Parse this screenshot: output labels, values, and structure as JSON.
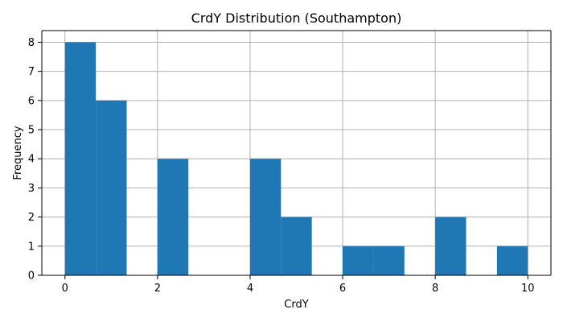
{
  "chart_data": {
    "type": "bar",
    "title": "CrdY Distribution (Southampton)",
    "xlabel": "CrdY",
    "ylabel": "Frequency",
    "bins": [
      {
        "start": 0.0,
        "end": 0.6667,
        "count": 8
      },
      {
        "start": 0.6667,
        "end": 1.3333,
        "count": 6
      },
      {
        "start": 1.3333,
        "end": 2.0,
        "count": 0
      },
      {
        "start": 2.0,
        "end": 2.6667,
        "count": 4
      },
      {
        "start": 2.6667,
        "end": 3.3333,
        "count": 0
      },
      {
        "start": 3.3333,
        "end": 4.0,
        "count": 0
      },
      {
        "start": 4.0,
        "end": 4.6667,
        "count": 4
      },
      {
        "start": 4.6667,
        "end": 5.3333,
        "count": 2
      },
      {
        "start": 5.3333,
        "end": 6.0,
        "count": 0
      },
      {
        "start": 6.0,
        "end": 6.6667,
        "count": 1
      },
      {
        "start": 6.6667,
        "end": 7.3333,
        "count": 1
      },
      {
        "start": 7.3333,
        "end": 8.0,
        "count": 0
      },
      {
        "start": 8.0,
        "end": 8.6667,
        "count": 2
      },
      {
        "start": 8.6667,
        "end": 9.3333,
        "count": 0
      },
      {
        "start": 9.3333,
        "end": 10.0,
        "count": 1
      }
    ],
    "xlim": [
      -0.5,
      10.5
    ],
    "ylim": [
      0,
      8.4
    ],
    "xticks": [
      0,
      2,
      4,
      6,
      8,
      10
    ],
    "yticks": [
      0,
      1,
      2,
      3,
      4,
      5,
      6,
      7,
      8
    ],
    "grid": true,
    "bar_color": "#1f77b4"
  }
}
